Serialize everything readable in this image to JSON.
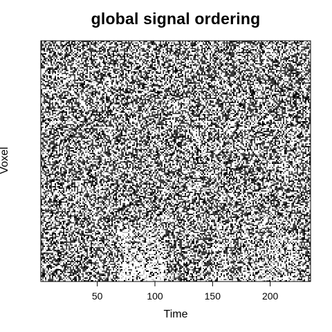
{
  "chart_data": {
    "type": "heatmap",
    "title": "global signal ordering",
    "xlabel": "Time",
    "ylabel": "Voxel",
    "x_ticks": [
      "50",
      "100",
      "150",
      "200"
    ],
    "x_tick_values": [
      50,
      100,
      150,
      200
    ],
    "xlim": [
      1,
      235
    ],
    "grid": false,
    "colormap": "black-white",
    "description_of_data": "Dense grayscale raster of voxel signals over time; noisy texture throughout, lighter/whiter columns near the bottom around times 70–110 and 150–220."
  }
}
